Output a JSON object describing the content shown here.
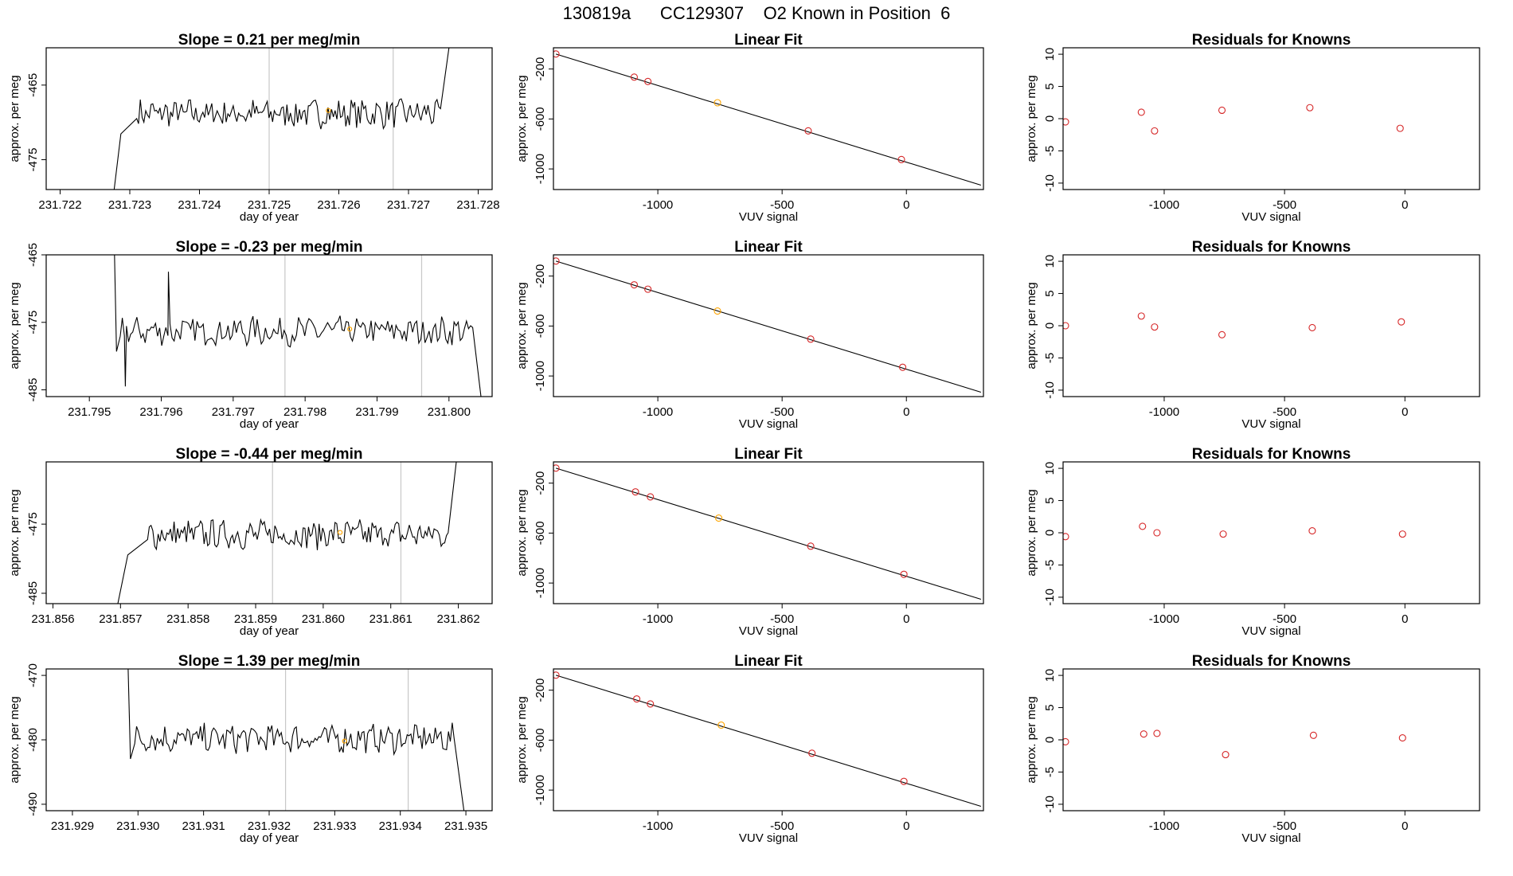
{
  "title": "130819a      CC129307    O2 Known in Position  6",
  "colors": {
    "trace": "#000000",
    "vline": "#c8c8c8",
    "point": "#d62728",
    "highlight": "#ffa500",
    "frame": "#000000"
  },
  "chart_data": [
    {
      "row": 1,
      "time_series": {
        "type": "line",
        "title": "Slope =  0.21  per meg/min",
        "xlabel": "day of year",
        "ylabel": "approx. per meg",
        "xlim": [
          231.7218,
          231.7282
        ],
        "ylim": [
          -479,
          -460
        ],
        "x_ticks": [
          "231.722",
          "231.723",
          "231.724",
          "231.725",
          "231.726",
          "231.727",
          "231.728"
        ],
        "y_ticks": [
          "-465",
          "-475"
        ],
        "start": 231.72275,
        "end": 231.72758,
        "level": -468.8,
        "vlines": [
          231.725,
          231.72678
        ],
        "marker": {
          "x": 231.72585,
          "y": -468.4
        },
        "ramp_in": {
          "dx": 0.00035,
          "from": -481
        },
        "ramp_out": {
          "dx": 0.00012,
          "to": -460
        }
      },
      "linear_fit": {
        "type": "scatter",
        "title": "Linear Fit",
        "xlabel": "VUV signal",
        "ylabel": "approx. per meg",
        "xlim": [
          -1420,
          310
        ],
        "ylim": [
          -1165,
          -30
        ],
        "x_ticks": [
          "-1000",
          "-500",
          "0"
        ],
        "y_ticks": [
          "-200",
          "-600",
          "-1000"
        ],
        "points": [
          {
            "x": -1410,
            "y": -80
          },
          {
            "x": -1095,
            "y": -265
          },
          {
            "x": -1040,
            "y": -300
          },
          {
            "x": -760,
            "y": -470,
            "highlight": true
          },
          {
            "x": -395,
            "y": -695
          },
          {
            "x": -20,
            "y": -925
          }
        ],
        "fit_line": {
          "x": [
            -1410,
            300
          ],
          "y": [
            -80,
            -1130
          ]
        }
      },
      "residuals": {
        "type": "scatter",
        "title": "Residuals for Knowns",
        "xlabel": "VUV signal",
        "ylabel": "approx. per meg",
        "xlim": [
          -1420,
          310
        ],
        "ylim": [
          -11,
          11
        ],
        "x_ticks": [
          "-1000",
          "-500",
          "0"
        ],
        "y_ticks": [
          "10",
          "5",
          "0",
          "-5",
          "-10"
        ],
        "points": [
          {
            "x": -1410,
            "y": -0.5
          },
          {
            "x": -1095,
            "y": 1.0
          },
          {
            "x": -1040,
            "y": -1.9
          },
          {
            "x": -760,
            "y": 1.3
          },
          {
            "x": -395,
            "y": 1.7
          },
          {
            "x": -20,
            "y": -1.5
          }
        ]
      }
    },
    {
      "row": 2,
      "time_series": {
        "type": "line",
        "title": "Slope =  -0.23  per meg/min",
        "xlabel": "day of year",
        "ylabel": "approx. per meg",
        "xlim": [
          231.7944,
          231.8006
        ],
        "ylim": [
          -486,
          -465
        ],
        "x_ticks": [
          "231.795",
          "231.796",
          "231.797",
          "231.798",
          "231.799",
          "231.800"
        ],
        "y_ticks": [
          "-465",
          "-475",
          "-485"
        ],
        "start": 231.79535,
        "end": 231.80045,
        "level": -476.3,
        "vlines": [
          231.79772,
          231.79962
        ],
        "marker": {
          "x": 231.79862,
          "y": -476.0
        },
        "ramp_in": {
          "dx": 8e-05,
          "from": -465
        },
        "ramp_out": {
          "dx": 0.00012,
          "to": -486.5
        },
        "spikes": [
          {
            "x": 231.7955,
            "y": -484.5
          },
          {
            "x": 231.7961,
            "y": -467.5
          }
        ]
      },
      "linear_fit": {
        "type": "scatter",
        "title": "Linear Fit",
        "xlabel": "VUV signal",
        "ylabel": "approx. per meg",
        "xlim": [
          -1420,
          310
        ],
        "ylim": [
          -1165,
          -30
        ],
        "x_ticks": [
          "-1000",
          "-500",
          "0"
        ],
        "y_ticks": [
          "-200",
          "-600",
          "-1000"
        ],
        "points": [
          {
            "x": -1410,
            "y": -80
          },
          {
            "x": -1095,
            "y": -270
          },
          {
            "x": -1040,
            "y": -305
          },
          {
            "x": -760,
            "y": -480,
            "highlight": true
          },
          {
            "x": -385,
            "y": -705
          },
          {
            "x": -15,
            "y": -930
          }
        ],
        "fit_line": {
          "x": [
            -1410,
            300
          ],
          "y": [
            -80,
            -1130
          ]
        }
      },
      "residuals": {
        "type": "scatter",
        "title": "Residuals for Knowns",
        "xlabel": "VUV signal",
        "ylabel": "approx. per meg",
        "xlim": [
          -1420,
          310
        ],
        "ylim": [
          -11,
          11
        ],
        "x_ticks": [
          "-1000",
          "-500",
          "0"
        ],
        "y_ticks": [
          "10",
          "5",
          "0",
          "-5",
          "-10"
        ],
        "points": [
          {
            "x": -1410,
            "y": 0.0
          },
          {
            "x": -1095,
            "y": 1.5
          },
          {
            "x": -1040,
            "y": -0.2
          },
          {
            "x": -760,
            "y": -1.4
          },
          {
            "x": -385,
            "y": -0.3
          },
          {
            "x": -15,
            "y": 0.6
          }
        ]
      }
    },
    {
      "row": 3,
      "time_series": {
        "type": "line",
        "title": "Slope =  -0.44  per meg/min",
        "xlabel": "day of year",
        "ylabel": "approx. per meg",
        "xlim": [
          231.8559,
          231.8625
        ],
        "ylim": [
          -486.5,
          -466
        ],
        "x_ticks": [
          "231.856",
          "231.857",
          "231.858",
          "231.859",
          "231.860",
          "231.861",
          "231.862"
        ],
        "y_ticks": [
          "-475",
          "-485"
        ],
        "start": 231.85695,
        "end": 231.86197,
        "level": -476.5,
        "vlines": [
          231.85925,
          231.86115
        ],
        "marker": {
          "x": 231.86025,
          "y": -476.2
        },
        "ramp_in": {
          "dx": 0.00045,
          "from": -487
        },
        "ramp_out": {
          "dx": 0.00012,
          "to": -466
        }
      },
      "linear_fit": {
        "type": "scatter",
        "title": "Linear Fit",
        "xlabel": "VUV signal",
        "ylabel": "approx. per meg",
        "xlim": [
          -1420,
          310
        ],
        "ylim": [
          -1165,
          -30
        ],
        "x_ticks": [
          "-1000",
          "-500",
          "0"
        ],
        "y_ticks": [
          "-200",
          "-600",
          "-1000"
        ],
        "points": [
          {
            "x": -1410,
            "y": -80
          },
          {
            "x": -1090,
            "y": -270
          },
          {
            "x": -1030,
            "y": -310
          },
          {
            "x": -755,
            "y": -480,
            "highlight": true
          },
          {
            "x": -385,
            "y": -705
          },
          {
            "x": -10,
            "y": -930
          }
        ],
        "fit_line": {
          "x": [
            -1410,
            300
          ],
          "y": [
            -80,
            -1130
          ]
        }
      },
      "residuals": {
        "type": "scatter",
        "title": "Residuals for Knowns",
        "xlabel": "VUV signal",
        "ylabel": "approx. per meg",
        "xlim": [
          -1420,
          310
        ],
        "ylim": [
          -11,
          11
        ],
        "x_ticks": [
          "-1000",
          "-500",
          "0"
        ],
        "y_ticks": [
          "10",
          "5",
          "0",
          "-5",
          "-10"
        ],
        "points": [
          {
            "x": -1410,
            "y": -0.6
          },
          {
            "x": -1090,
            "y": 1.0
          },
          {
            "x": -1030,
            "y": 0.0
          },
          {
            "x": -755,
            "y": -0.2
          },
          {
            "x": -385,
            "y": 0.3
          },
          {
            "x": -10,
            "y": -0.2
          }
        ]
      }
    },
    {
      "row": 4,
      "time_series": {
        "type": "line",
        "title": "Slope =  1.39  per meg/min",
        "xlabel": "day of year",
        "ylabel": "approx. per meg",
        "xlim": [
          231.9286,
          231.9354
        ],
        "ylim": [
          -491,
          -469
        ],
        "x_ticks": [
          "231.929",
          "231.930",
          "231.931",
          "231.932",
          "231.933",
          "231.934",
          "231.935"
        ],
        "y_ticks": [
          "-470",
          "-480",
          "-490"
        ],
        "start": 231.92985,
        "end": 231.93497,
        "level": -479.8,
        "vlines": [
          231.93225,
          231.93412
        ],
        "marker": {
          "x": 231.93315,
          "y": -480.2
        },
        "ramp_in": {
          "dx": 0.0001,
          "from": -469
        },
        "ramp_out": {
          "dx": 0.00015,
          "to": -491
        }
      },
      "linear_fit": {
        "type": "scatter",
        "title": "Linear Fit",
        "xlabel": "VUV signal",
        "ylabel": "approx. per meg",
        "xlim": [
          -1420,
          310
        ],
        "ylim": [
          -1165,
          -30
        ],
        "x_ticks": [
          "-1000",
          "-500",
          "0"
        ],
        "y_ticks": [
          "-200",
          "-600",
          "-1000"
        ],
        "points": [
          {
            "x": -1410,
            "y": -80
          },
          {
            "x": -1085,
            "y": -270
          },
          {
            "x": -1030,
            "y": -310
          },
          {
            "x": -745,
            "y": -480,
            "highlight": true
          },
          {
            "x": -380,
            "y": -705
          },
          {
            "x": -10,
            "y": -930
          }
        ],
        "fit_line": {
          "x": [
            -1410,
            300
          ],
          "y": [
            -80,
            -1130
          ]
        }
      },
      "residuals": {
        "type": "scatter",
        "title": "Residuals for Knowns",
        "xlabel": "VUV signal",
        "ylabel": "approx. per meg",
        "xlim": [
          -1420,
          310
        ],
        "ylim": [
          -11,
          11
        ],
        "x_ticks": [
          "-1000",
          "-500",
          "0"
        ],
        "y_ticks": [
          "10",
          "5",
          "0",
          "-5",
          "-10"
        ],
        "points": [
          {
            "x": -1410,
            "y": -0.3
          },
          {
            "x": -1085,
            "y": 0.9
          },
          {
            "x": -1030,
            "y": 1.0
          },
          {
            "x": -745,
            "y": -2.3
          },
          {
            "x": -380,
            "y": 0.7
          },
          {
            "x": -10,
            "y": 0.3
          }
        ]
      }
    }
  ]
}
